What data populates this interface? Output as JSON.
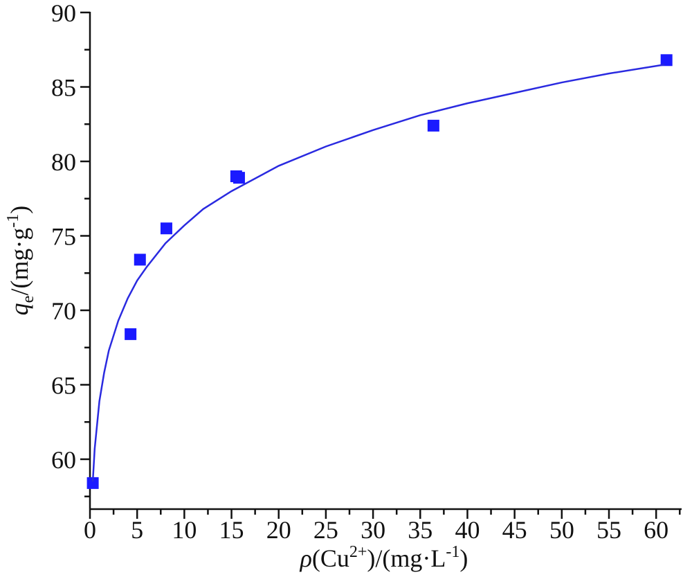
{
  "chart_data": {
    "type": "scatter",
    "x_label": [
      "ρ",
      "(Cu",
      "2+",
      ")/(mg·L",
      "-1",
      ")"
    ],
    "y_label": [
      "q",
      "e",
      "/(mg·g",
      "-1",
      ")"
    ],
    "series": [
      {
        "kind": "points",
        "color": "#1a1aff",
        "x": [
          0.3,
          4.3,
          5.3,
          8.1,
          15.5,
          15.8,
          36.4,
          61.1
        ],
        "values": [
          58.4,
          68.4,
          73.4,
          75.5,
          79.0,
          78.9,
          82.4,
          86.8
        ]
      },
      {
        "kind": "line",
        "color": "#2a2ae0",
        "x": [
          0.3,
          0.5,
          1,
          1.5,
          2,
          3,
          4,
          5,
          6,
          8,
          10,
          12,
          15,
          20,
          25,
          30,
          35,
          40,
          45,
          50,
          55,
          60.9
        ],
        "values": [
          58.5,
          60.7,
          63.9,
          65.8,
          67.3,
          69.3,
          70.8,
          72.0,
          72.9,
          74.5,
          75.7,
          76.8,
          78.0,
          79.7,
          81.0,
          82.1,
          83.1,
          83.9,
          84.6,
          85.3,
          85.9,
          86.5
        ]
      }
    ],
    "xlim": [
      0,
      62.7
    ],
    "ylim": [
      56.65,
      90
    ],
    "xticks": [
      0,
      5,
      10,
      15,
      20,
      25,
      30,
      35,
      40,
      45,
      50,
      55,
      60
    ],
    "xminorticks": [
      2.5,
      7.5,
      12.5,
      17.5,
      22.5,
      27.5,
      32.5,
      37.5,
      42.5,
      47.5,
      52.5,
      57.5,
      62.5
    ],
    "yticks": [
      60,
      65,
      70,
      75,
      80,
      85,
      90
    ],
    "yminorticks": [
      57.5,
      62.5,
      67.5,
      72.5,
      77.5,
      82.5,
      87.5
    ]
  }
}
